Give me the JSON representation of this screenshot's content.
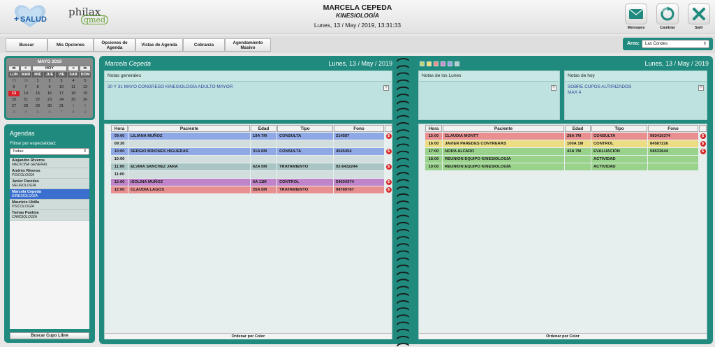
{
  "header": {
    "logo_salud_text": "SALUD",
    "logo_philax": "philax",
    "logo_qmed": "qmed",
    "doctor_name": "MARCELA CEPEDA",
    "specialty": "KINESIOLOGÍA",
    "datetime": "Lunes, 13 / May / 2019, 13:31:33",
    "buttons": [
      {
        "label": "Mensajes",
        "icon": "envelope-icon"
      },
      {
        "label": "Cambiar",
        "icon": "refresh-icon"
      },
      {
        "label": "Salir",
        "icon": "close-icon"
      }
    ]
  },
  "nav": {
    "items": [
      "Buscar",
      "Mis Opciones",
      "Opciones de\nAgenda",
      "Vistas de Agenda",
      "Cobranza",
      "Agendamiento\nMasivo"
    ],
    "area_label": "Area:",
    "area_value": "Las Condes"
  },
  "calendar": {
    "title": "MAYO 2019",
    "nav": [
      "≪",
      "<",
      "HOY",
      ">",
      "≫"
    ],
    "weekdays": [
      "LUN",
      "MAR",
      "MIÉ",
      "JUE",
      "VIE",
      "SAB",
      "DOM"
    ],
    "weeks": [
      [
        "29",
        "30",
        "1",
        "2",
        "3",
        "4",
        "5"
      ],
      [
        "6",
        "7",
        "8",
        "9",
        "10",
        "11",
        "12"
      ],
      [
        "13",
        "14",
        "15",
        "16",
        "17",
        "18",
        "19"
      ],
      [
        "20",
        "21",
        "22",
        "23",
        "24",
        "25",
        "26"
      ],
      [
        "27",
        "28",
        "29",
        "30",
        "31",
        "1",
        "2"
      ],
      [
        "3",
        "4",
        "5",
        "6",
        "7",
        "8",
        "9"
      ]
    ],
    "today": "13"
  },
  "agendas": {
    "title": "Agendas",
    "filter_label": "Filtrar por especialidad:",
    "filter_value": "Todas",
    "items": [
      {
        "name": "Alejandro Riveros",
        "spec": "MEDICINA GENERAL",
        "selected": false
      },
      {
        "name": "Andrés Riveros",
        "spec": "PSICOLOGÍA",
        "selected": false
      },
      {
        "name": "Javier Paredes",
        "spec": "NEUROLOGÍA",
        "selected": false
      },
      {
        "name": "Marcela Cepeda",
        "spec": "KINESIOLOGÍA",
        "selected": true
      },
      {
        "name": "Mauricio Ubilla",
        "spec": "PSICOLOGÍA",
        "selected": false
      },
      {
        "name": "Tomas Puelma",
        "spec": "CARDIOLOGÍA",
        "selected": false
      }
    ],
    "button": "Buscar Cupo Libre"
  },
  "left_page": {
    "doctor": "Marcela Cepeda",
    "date": "Lunes, 13 / May / 2019",
    "notes_title": "Notas generales",
    "notes_text": "30 Y 31 MAYO CONGRESO  KINESIOLOGÍA ADULTO MAYOR",
    "columns": [
      "Hora",
      "Paciente",
      "Edad",
      "Tipo",
      "Fono"
    ],
    "rows": [
      {
        "time": "09:00",
        "patient": "LILIANA MUÑOZ",
        "age": "19A 7M",
        "type": "CONSULTA",
        "phone": "214587",
        "color": "#8fa8e6",
        "badge": "$"
      },
      {
        "time": "09:30",
        "patient": "",
        "age": "",
        "type": "",
        "phone": "",
        "color": "#d2dedd",
        "badge": ""
      },
      {
        "time": "10:00",
        "patient": "SERGIO BRIONES HIGUERAS",
        "age": "31A 6M",
        "type": "CONSULTA",
        "phone": "4545454",
        "color": "#8fa8e6",
        "badge": "$"
      },
      {
        "time": "10:00",
        "patient": "",
        "age": "",
        "type": "",
        "phone": "",
        "color": "#d2dedd",
        "badge": ""
      },
      {
        "time": "11:00",
        "patient": "ELVIRA SANCHEZ JARA",
        "age": "62A 5M",
        "type": "TRATAMIENTO",
        "phone": "02-6432244",
        "color": "#a9c6c4",
        "badge": "$"
      },
      {
        "time": "11:00",
        "patient": "",
        "age": "",
        "type": "",
        "phone": "",
        "color": "#d2dedd",
        "badge": ""
      },
      {
        "time": "12:00",
        "patient": "ISOLINA MUÑOZ",
        "age": "6A 11M",
        "type": "CONTROL",
        "phone": "54634374",
        "color": "#bf84c9",
        "badge": "$"
      },
      {
        "time": "12:00",
        "patient": "CLAUDIA LAGOS",
        "age": "26A 5M",
        "type": "TRATAMIENTO",
        "phone": "94789787",
        "color": "#e88f8f",
        "badge": "$"
      }
    ],
    "order_label": "Ordenar por Color"
  },
  "right_page": {
    "date": "Lunes, 13 / May / 2019",
    "swatches": [
      "#b9d77a",
      "#ecdf7a",
      "#eb8f8f",
      "#c68bd1",
      "#8fa8e6",
      "#a9cfd0"
    ],
    "notes_day_title": "Notas de los Lunes",
    "notes_day_text": "",
    "notes_today_title": "Notas de hoy",
    "notes_today_text": "SOBRE CUPOS AUTIRIZADOS\nMAX 4",
    "columns": [
      "Hora",
      "Paciente",
      "Edad",
      "Tipo",
      "Fono"
    ],
    "rows": [
      {
        "time": "15:00",
        "patient": "CLAUDIA MONTT",
        "age": "28A 7M",
        "type": "CONSULTA",
        "phone": "983410374",
        "color": "#ea8f8f",
        "badge": "$"
      },
      {
        "time": "16:00",
        "patient": "JAVIER PAREDES CONTRERAS",
        "age": "100A 1M",
        "type": "CONTROL",
        "phone": "84587226",
        "color": "#ecdc84",
        "badge": "$"
      },
      {
        "time": "17:00",
        "patient": "NORA ALFARO",
        "age": "43A 7M",
        "type": "EVALUACIÓN",
        "phone": "58533644",
        "color": "#99d28a",
        "badge": "$"
      },
      {
        "time": "18:00",
        "patient": "REUNION EQUIPO KINESIOLOGÍA",
        "age": "",
        "type": "ACTIVIDAD",
        "phone": "",
        "color": "#99d28a",
        "badge": ""
      },
      {
        "time": "19:00",
        "patient": "REUNION EQUIPO KINESIOLOGÍA",
        "age": "",
        "type": "ACTIVIDAD",
        "phone": "",
        "color": "#99d28a",
        "badge": ""
      }
    ],
    "order_label": "Ordenar por Color"
  }
}
